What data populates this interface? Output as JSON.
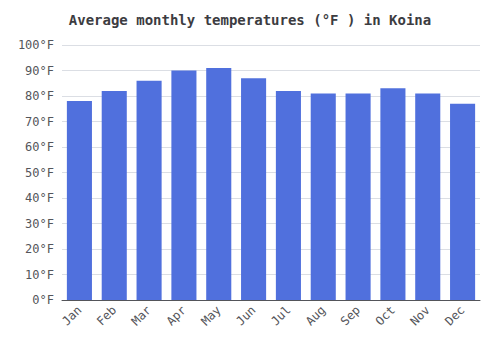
{
  "chart_data": {
    "type": "bar",
    "title": "Average monthly temperatures (°F ) in Koina",
    "categories": [
      "Jan",
      "Feb",
      "Mar",
      "Apr",
      "May",
      "Jun",
      "Jul",
      "Aug",
      "Sep",
      "Oct",
      "Nov",
      "Dec"
    ],
    "values": [
      78,
      82,
      86,
      90,
      91,
      87,
      82,
      81,
      81,
      83,
      81,
      77
    ],
    "ylim": [
      0,
      100
    ],
    "yticks": [
      {
        "value": 0,
        "label": "0°F"
      },
      {
        "value": 10,
        "label": "10°F"
      },
      {
        "value": 20,
        "label": "20°F"
      },
      {
        "value": 30,
        "label": "30°F"
      },
      {
        "value": 40,
        "label": "40°F"
      },
      {
        "value": 50,
        "label": "50°F"
      },
      {
        "value": 60,
        "label": "60°F"
      },
      {
        "value": 70,
        "label": "70°F"
      },
      {
        "value": 80,
        "label": "80°F"
      },
      {
        "value": 90,
        "label": "90°F"
      },
      {
        "value": 100,
        "label": "100°F"
      }
    ],
    "grid": true
  }
}
